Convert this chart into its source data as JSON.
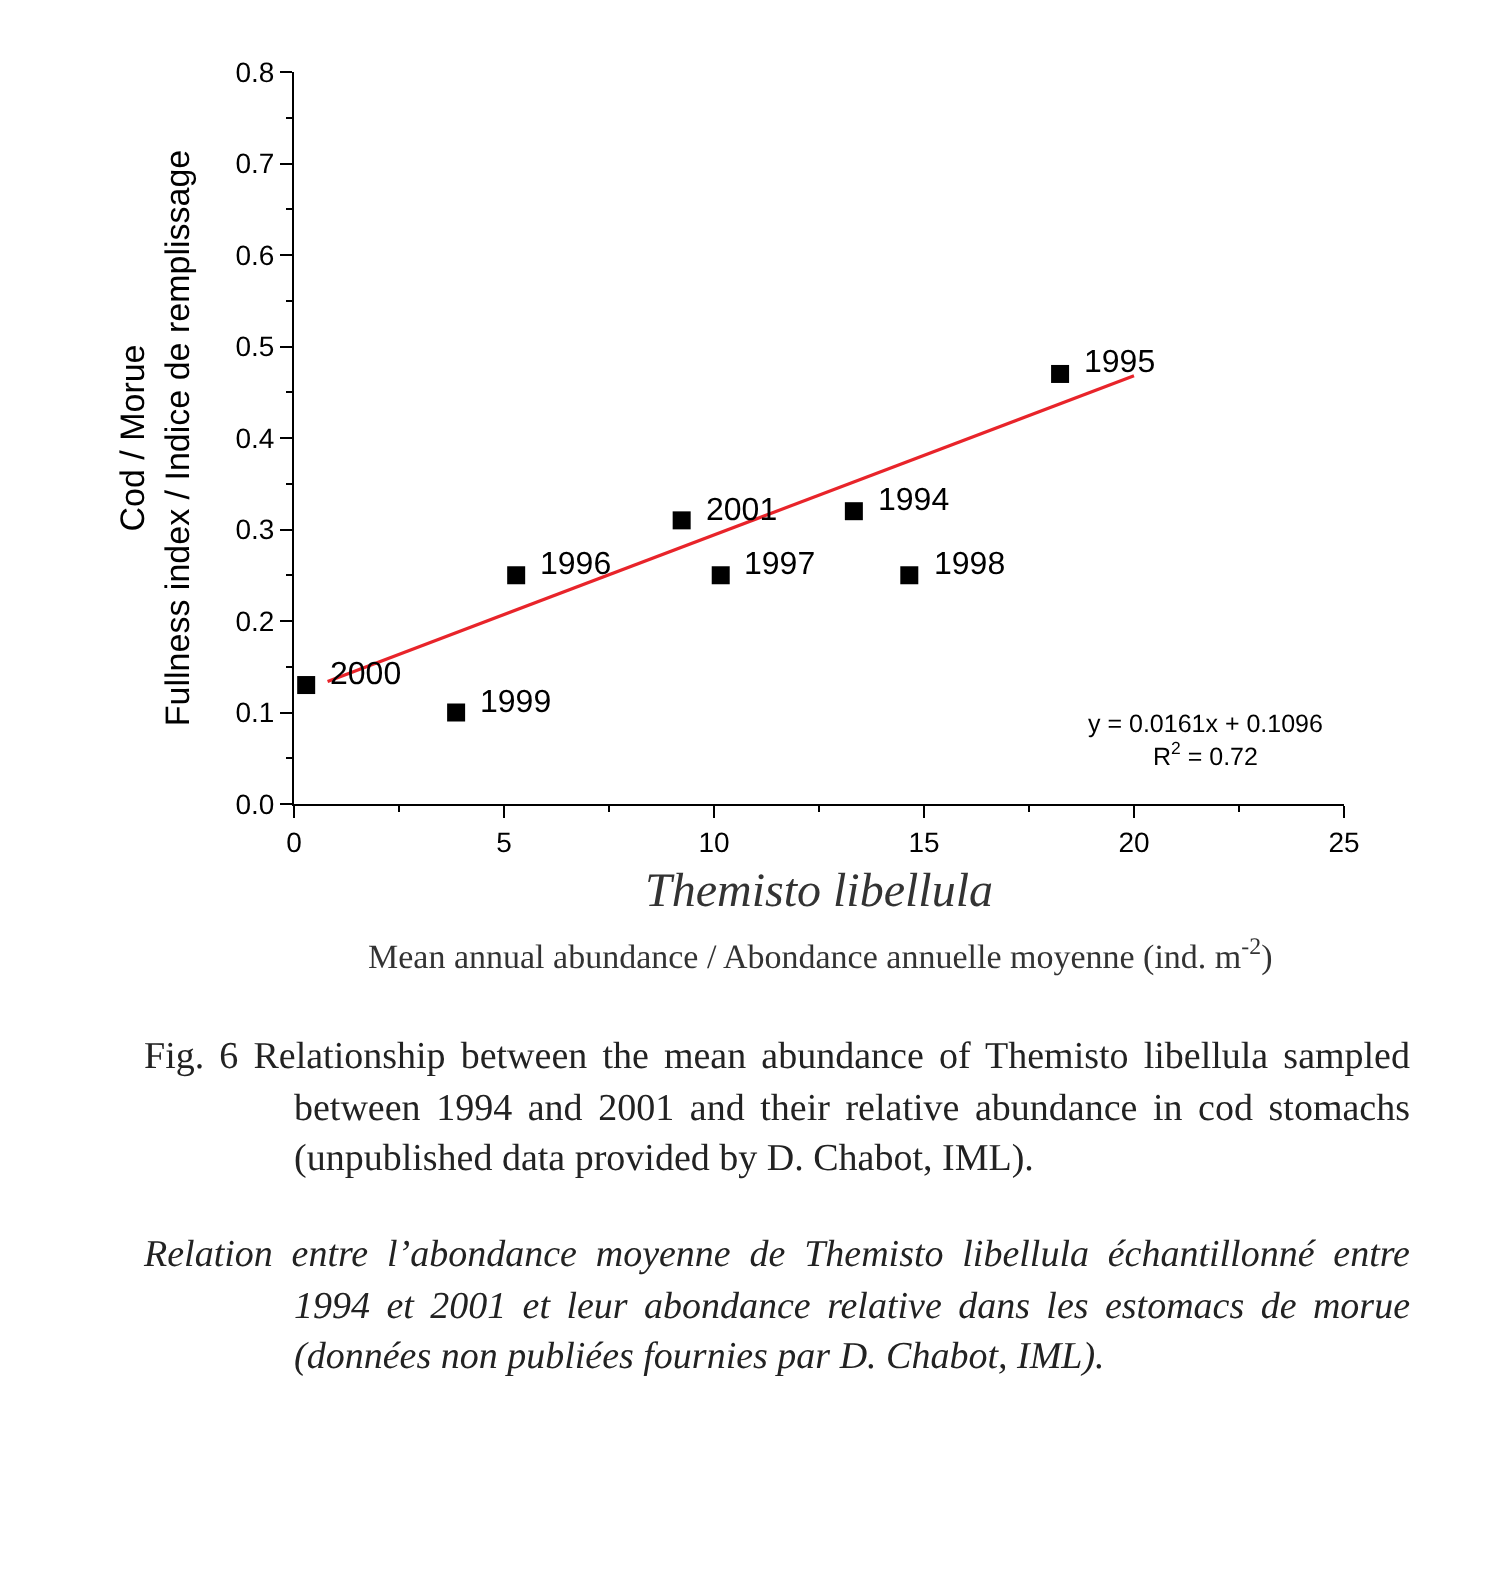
{
  "chart_data": {
    "type": "scatter",
    "xlabel": "Themisto libellula",
    "ylabel": "Cod / Morue\nFullness index / Indice de remplissage",
    "xlim": [
      0,
      25
    ],
    "xticks": [
      0,
      5,
      10,
      15,
      20,
      25
    ],
    "ylim": [
      0,
      0.8
    ],
    "yticks": [
      {
        "value": 0,
        "label": "0.0"
      },
      0.1,
      0.2,
      0.3,
      0.4,
      0.5,
      0.6,
      0.7,
      0.8
    ],
    "grid": false,
    "legend": false,
    "series": [
      {
        "marker": "square",
        "color": "#000000",
        "x": [
          0.29,
          3.86,
          5.29,
          9.23,
          10.16,
          13.33,
          14.65,
          18.24
        ],
        "values": [
          0.13,
          0.1,
          0.25,
          0.31,
          0.25,
          0.32,
          0.25,
          0.47
        ]
      },
      {
        "type": "line",
        "color": "#e8242a",
        "x": [
          0.8,
          20
        ],
        "values": [
          0.134,
          0.468
        ]
      }
    ],
    "annotations": [
      {
        "text": "2000",
        "x": 0.29,
        "y": 0.13
      },
      {
        "text": "1999",
        "x": 3.86,
        "y": 0.1
      },
      {
        "text": "1996",
        "x": 5.29,
        "y": 0.25
      },
      {
        "text": "2001",
        "x": 9.23,
        "y": 0.31
      },
      {
        "text": "1997",
        "x": 10.16,
        "y": 0.25
      },
      {
        "text": "1994",
        "x": 13.33,
        "y": 0.32
      },
      {
        "text": "1998",
        "x": 14.65,
        "y": 0.25
      },
      {
        "text": "1995",
        "x": 18.24,
        "y": 0.47
      },
      "y = 0.0161x + 0.1096\nR$^{2}$ = 0.72",
      "Mean annual abundance / Abondance annuelle moyenne (ind. m$^{-2}$)",
      "Fig. 6   Relationship between the mean abundance of Themisto libellula sampled between 1994 and 2001 and their relative abundance in cod stomachs (unpublished data provided by D. Chabot, IML).",
      "Relation entre l’abondance moyenne de Themisto libellula échantillonné entre 1994 et 2001 et leur abondance relative dans les estomacs de morue (données non publiées fournies par D. Chabot, IML)."
    ]
  }
}
